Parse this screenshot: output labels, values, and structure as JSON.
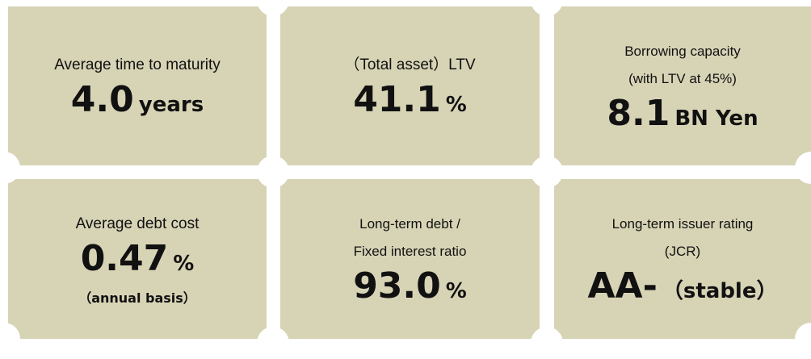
{
  "tiles": [
    {
      "label": [
        "Average time to maturity"
      ],
      "value": "4.0",
      "unit": "years"
    },
    {
      "label": [
        "（Total asset）LTV"
      ],
      "value": "41.1",
      "unit": "%"
    },
    {
      "label": [
        "Borrowing capacity",
        "(with LTV at 45%)"
      ],
      "value": "8.1",
      "unit": "BN Yen"
    },
    {
      "label": [
        "Average debt cost"
      ],
      "value": "0.47",
      "unit": "%",
      "note": "（annual basis）"
    },
    {
      "label": [
        "Long-term debt /",
        "Fixed interest ratio"
      ],
      "value": "93.0",
      "unit": "%"
    },
    {
      "label": [
        "Long-term issuer rating",
        "(JCR)"
      ],
      "value": "AA-",
      "unit": "（stable）"
    }
  ]
}
